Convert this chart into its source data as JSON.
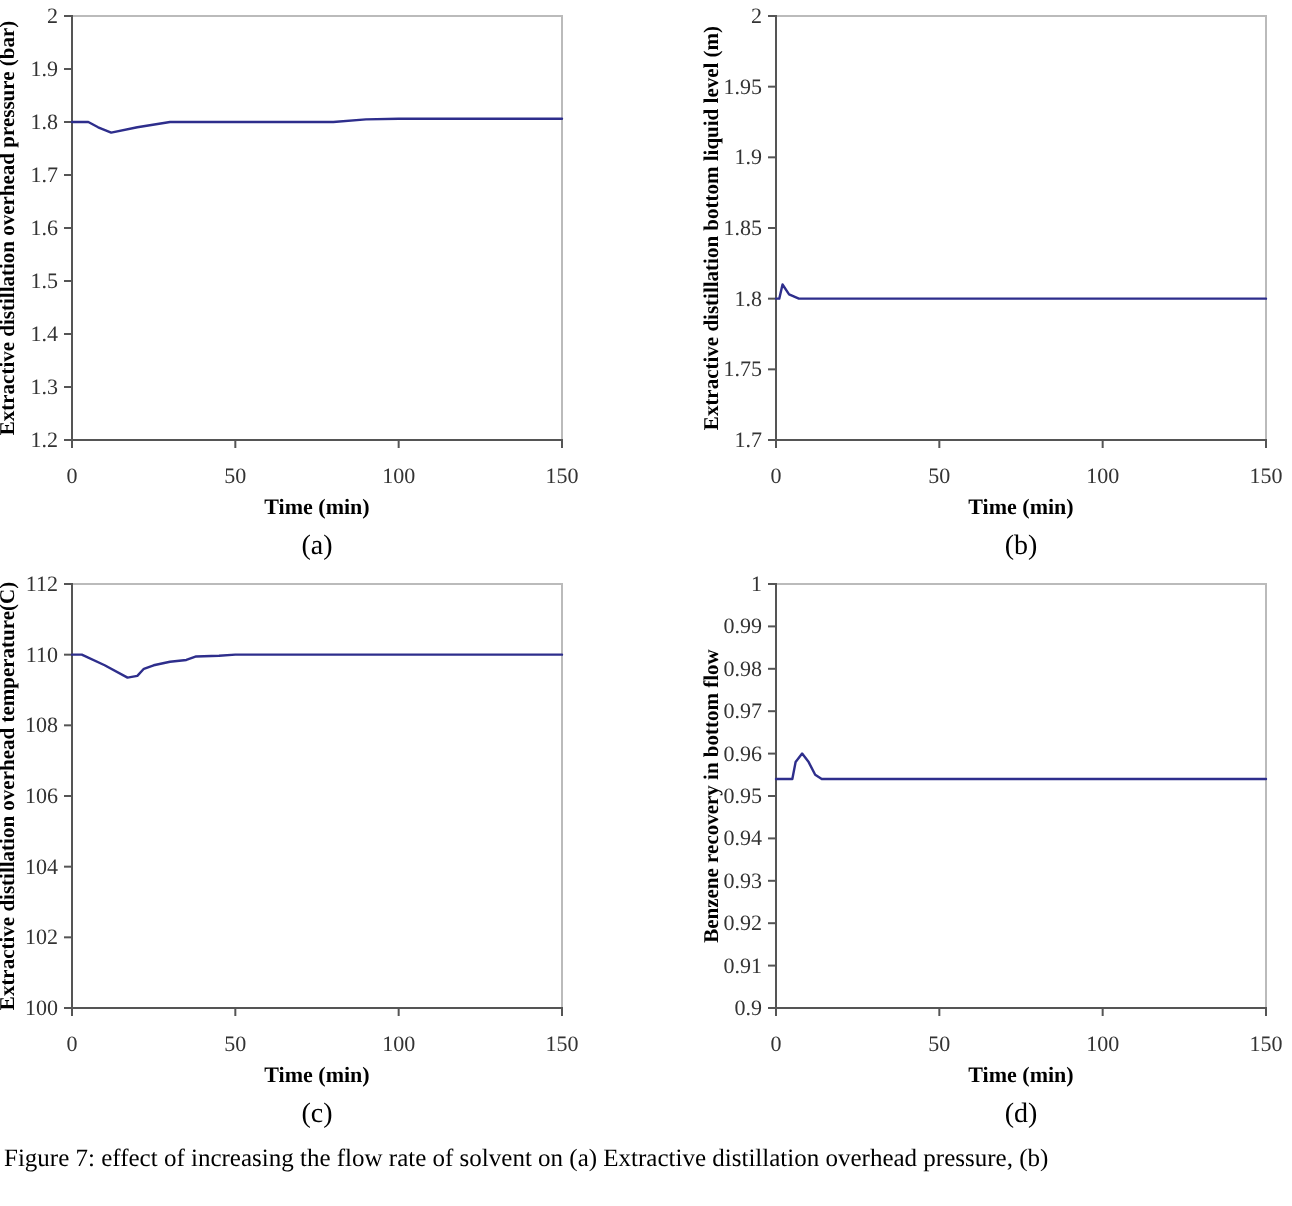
{
  "chart_data": [
    {
      "type": "line",
      "subtitle": "(a)",
      "xlabel": "Time (min)",
      "ylabel": "Extractive distillation overhead pressure (bar)",
      "x": [
        0,
        5,
        8,
        12,
        20,
        30,
        35,
        80,
        90,
        100,
        150
      ],
      "series": [
        {
          "color": "#2e2e8c",
          "values": [
            1.8,
            1.8,
            1.79,
            1.78,
            1.79,
            1.8,
            1.8,
            1.8,
            1.805,
            1.806,
            1.806
          ]
        }
      ],
      "xlim": [
        0,
        150
      ],
      "xticks": [
        0,
        50,
        100,
        150
      ],
      "ylim": [
        1.2,
        2
      ],
      "yticks": [
        1.2,
        1.3,
        1.4,
        1.5,
        1.6,
        1.7,
        1.8,
        1.9,
        2
      ],
      "grid": false,
      "annotations": [
        "Figure 7: effect of increasing the flow rate of solvent on (a) Extractive distillation overhead pressure, (b)"
      ]
    },
    {
      "type": "line",
      "subtitle": "(b)",
      "xlabel": "Time (min)",
      "ylabel": "Extractive distillation bottom liquid level (m)",
      "x": [
        0,
        1,
        2,
        4,
        7,
        150
      ],
      "series": [
        {
          "color": "#2e2e8c",
          "values": [
            1.8,
            1.8,
            1.81,
            1.803,
            1.8,
            1.8
          ]
        }
      ],
      "xlim": [
        0,
        150
      ],
      "xticks": [
        0,
        50,
        100,
        150
      ],
      "ylim": [
        1.7,
        2
      ],
      "yticks": [
        1.7,
        1.75,
        1.8,
        1.85,
        1.9,
        1.95,
        2
      ],
      "grid": false
    },
    {
      "type": "line",
      "subtitle": "(c)",
      "xlabel": "Time (min)",
      "ylabel": "Extractive distillation overhead temperature(C)",
      "x": [
        0,
        3,
        10,
        17,
        20,
        22,
        25,
        30,
        35,
        38,
        45,
        50,
        150
      ],
      "series": [
        {
          "color": "#2e2e8c",
          "values": [
            110,
            110,
            109.7,
            109.35,
            109.4,
            109.6,
            109.7,
            109.8,
            109.85,
            109.95,
            109.97,
            110,
            110
          ]
        }
      ],
      "xlim": [
        0,
        150
      ],
      "xticks": [
        0,
        50,
        100,
        150
      ],
      "ylim": [
        100,
        112
      ],
      "yticks": [
        100,
        102,
        104,
        106,
        108,
        110,
        112
      ],
      "grid": false
    },
    {
      "type": "line",
      "subtitle": "(d)",
      "xlabel": "Time (min)",
      "ylabel": "Benzene recovery in bottom flow",
      "x": [
        0,
        5,
        6,
        8,
        10,
        12,
        14,
        150
      ],
      "series": [
        {
          "color": "#2e2e8c",
          "values": [
            0.954,
            0.954,
            0.958,
            0.96,
            0.958,
            0.955,
            0.954,
            0.954
          ]
        }
      ],
      "xlim": [
        0,
        150
      ],
      "xticks": [
        0,
        50,
        100,
        150
      ],
      "ylim": [
        0.9,
        1
      ],
      "yticks": [
        0.9,
        0.91,
        0.92,
        0.93,
        0.94,
        0.95,
        0.96,
        0.97,
        0.98,
        0.99,
        1
      ],
      "grid": false
    }
  ]
}
